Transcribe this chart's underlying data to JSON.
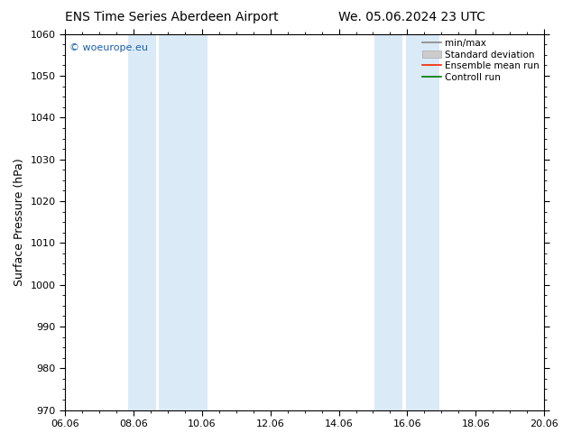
{
  "title_left": "ENS Time Series Aberdeen Airport",
  "title_right": "We. 05.06.2024 23 UTC",
  "ylabel": "Surface Pressure (hPa)",
  "ylim": [
    970,
    1060
  ],
  "yticks": [
    970,
    980,
    990,
    1000,
    1010,
    1020,
    1030,
    1040,
    1050,
    1060
  ],
  "xlim_start": 0,
  "xlim_end": 14,
  "xtick_labels": [
    "06.06",
    "08.06",
    "10.06",
    "12.06",
    "14.06",
    "16.06",
    "18.06",
    "20.06"
  ],
  "xtick_positions": [
    0,
    2,
    4,
    6,
    8,
    10,
    12,
    14
  ],
  "shaded_bands": [
    {
      "x_start": 1.8,
      "x_end": 2.8,
      "color": "#daeaf7"
    },
    {
      "x_start": 2.8,
      "x_end": 4.2,
      "color": "#daeaf7"
    },
    {
      "x_start": 9.0,
      "x_end": 9.8,
      "color": "#daeaf7"
    },
    {
      "x_start": 9.8,
      "x_end": 11.0,
      "color": "#daeaf7"
    }
  ],
  "watermark": "© woeurope.eu",
  "watermark_color": "#1a5faa",
  "background_color": "#ffffff",
  "plot_bg_color": "#ffffff",
  "legend_labels": [
    "min/max",
    "Standard deviation",
    "Ensemble mean run",
    "Controll run"
  ],
  "legend_colors_line": [
    "#888888",
    "#bbbbbb",
    "#ff2200",
    "#007700"
  ],
  "title_fontsize": 10,
  "ylabel_fontsize": 9,
  "tick_fontsize": 8,
  "legend_fontsize": 7.5
}
